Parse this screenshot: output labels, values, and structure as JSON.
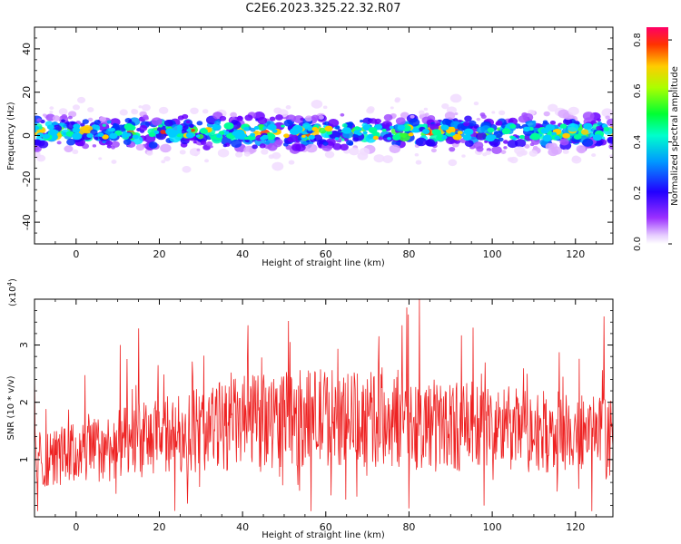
{
  "title": "C2E6.2023.325.22.32.R07",
  "colors": {
    "snr_line": "#ee2222",
    "frame": "#000000"
  },
  "chart_data": [
    {
      "type": "heatmap",
      "xlabel": "Height of straight line (km)",
      "ylabel": "Frequency (Hz)",
      "xlim": [
        -10,
        129
      ],
      "ylim": [
        -50,
        50
      ],
      "xticks": [
        0,
        20,
        40,
        60,
        80,
        100,
        120
      ],
      "yticks": [
        -40,
        -20,
        0,
        20,
        40
      ],
      "band_center_hz": 1.5,
      "band_halfwidth_hz": 5,
      "colorbar": {
        "label": "Normalized spectral amplitude",
        "range": [
          0.0,
          0.85
        ],
        "ticks": [
          "0.0",
          "0.2",
          "0.4",
          "0.6",
          "0.8"
        ],
        "colormap": "rainbow"
      }
    },
    {
      "type": "line",
      "xlabel": "Height of straight line (km)",
      "ylabel": "SNR (10 * v/v)",
      "y_multiplier": "(x10",
      "y_multiplier_exp": "4",
      "xlim": [
        -10,
        129
      ],
      "ylim": [
        0.0,
        3.8
      ],
      "xticks": [
        0,
        20,
        40,
        60,
        80,
        100,
        120
      ],
      "yticks": [
        "1",
        "2",
        "3"
      ],
      "series": [
        {
          "mean_profile": [
            [
              -10,
              1.0
            ],
            [
              0,
              1.1
            ],
            [
              20,
              1.4
            ],
            [
              40,
              1.65
            ],
            [
              60,
              1.75
            ],
            [
              80,
              1.65
            ],
            [
              100,
              1.55
            ],
            [
              129,
              1.4
            ]
          ],
          "max": 3.8,
          "min": 0.1
        }
      ]
    }
  ]
}
